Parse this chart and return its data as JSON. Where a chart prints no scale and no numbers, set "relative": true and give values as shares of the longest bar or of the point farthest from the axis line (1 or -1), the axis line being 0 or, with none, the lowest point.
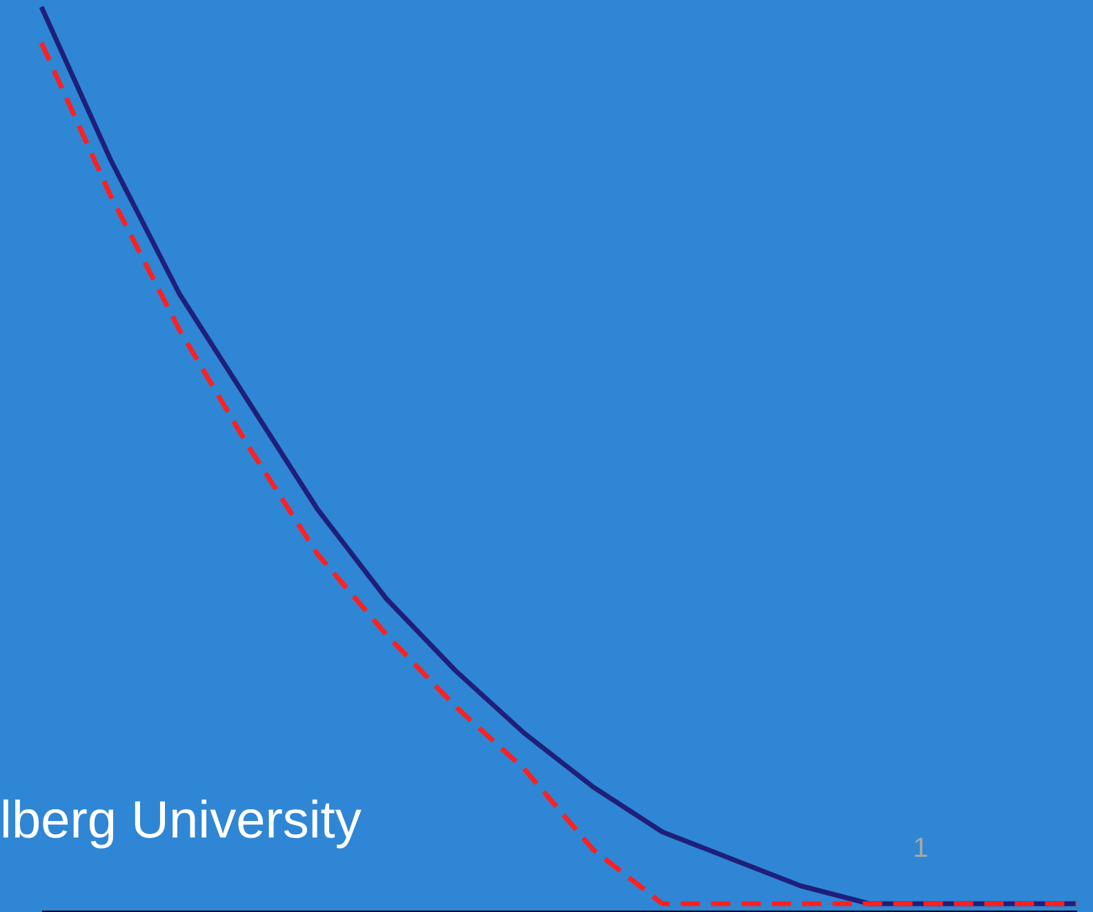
{
  "chart_data": {
    "type": "line",
    "relative": true,
    "grid": false,
    "categories": [
      null,
      null,
      null,
      null,
      null,
      null,
      null,
      null,
      null,
      null,
      null,
      null,
      null,
      null,
      null,
      null
    ],
    "series": [
      {
        "color": "#1f1f7a",
        "line_style": "solid",
        "values": [
          1,
          0.83,
          0.68,
          0.56,
          0.44,
          0.34,
          0.26,
          0.19,
          0.13,
          0.08,
          0.05,
          0.02,
          0,
          0,
          0,
          0
        ]
      },
      {
        "color": "#ff2020",
        "line_style": "dashed",
        "values": [
          0.96,
          0.79,
          0.64,
          0.51,
          0.39,
          0.3,
          0.22,
          0.15,
          0.06,
          0,
          0,
          0,
          0,
          0,
          0,
          0
        ]
      }
    ],
    "annotations": [
      "lberg University",
      "1"
    ]
  }
}
